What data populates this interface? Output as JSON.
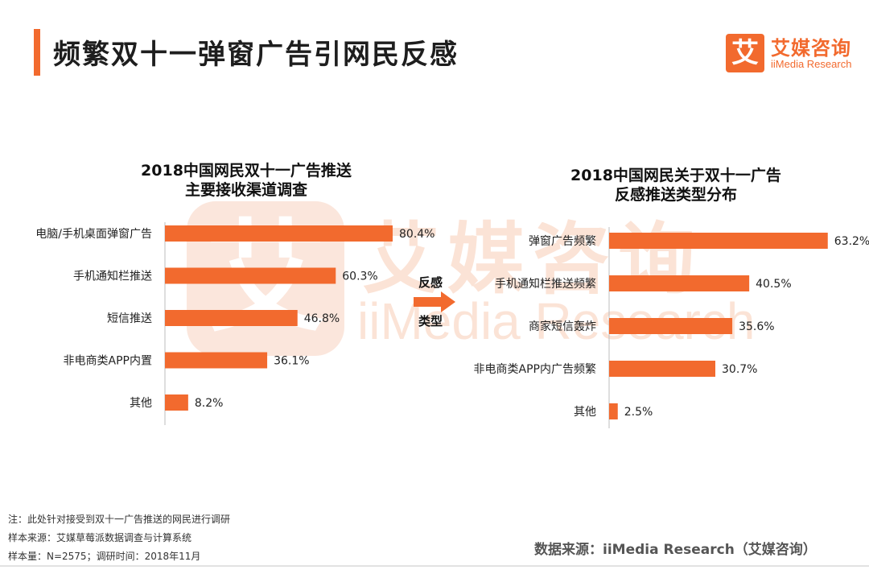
{
  "header": {
    "title": "频繁双十一弹窗广告引网民反感",
    "logo_mark": "艾",
    "logo_cn": "艾媒咨询",
    "logo_en": "iiMedia Research"
  },
  "watermark": {
    "mark": "艾",
    "cn": "艾媒咨询",
    "en": "iiMedia Research"
  },
  "center_label": {
    "top": "反感",
    "bottom": "类型"
  },
  "colors": {
    "accent": "#f26a2e",
    "bar": "#f26a2e"
  },
  "chart_data": [
    {
      "type": "bar",
      "orientation": "horizontal",
      "title_lines": [
        "2018中国网民双十一广告推送",
        "主要接收渠道调查"
      ],
      "categories": [
        "电脑/手机桌面弹窗广告",
        "手机通知栏推送",
        "短信推送",
        "非电商类APP内置",
        "其他"
      ],
      "values": [
        80.4,
        60.3,
        46.8,
        36.1,
        8.2
      ],
      "value_suffix": "%",
      "xlim": [
        0,
        100
      ],
      "grid": false
    },
    {
      "type": "bar",
      "orientation": "horizontal",
      "title_lines": [
        "2018中国网民关于双十一广告",
        "反感推送类型分布"
      ],
      "categories": [
        "弹窗广告频繁",
        "手机通知栏推送频繁",
        "商家短信轰炸",
        "非电商类APP内广告频繁",
        "其他"
      ],
      "values": [
        63.2,
        40.5,
        35.6,
        30.7,
        2.5
      ],
      "value_suffix": "%",
      "xlim": [
        0,
        100
      ],
      "grid": false
    }
  ],
  "footer": {
    "note1": "注：此处针对接受到双十一广告推送的网民进行调研",
    "note2": "样本来源：艾媒草莓派数据调查与计算系统",
    "note3": "样本量：N=2575；调研时间：2018年11月",
    "source": "数据来源：iiMedia Research（艾媒咨询）"
  }
}
